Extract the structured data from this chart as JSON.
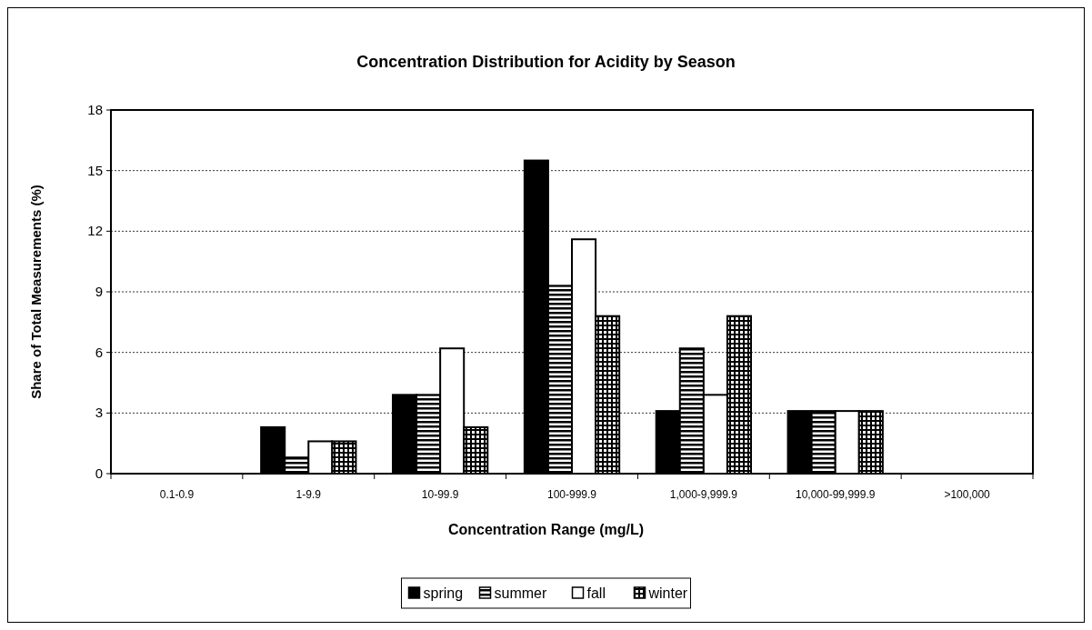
{
  "chart_data": {
    "type": "bar",
    "title": "Concentration Distribution for Acidity by Season",
    "xlabel": "Concentration Range (mg/L)",
    "ylabel": "Share of Total Measurements (%)",
    "categories": [
      "0.1-0.9",
      "1-9.9",
      "10-99.9",
      "100-999.9",
      "1,000-9,999.9",
      "10,000-99,999.9",
      ">100,000"
    ],
    "series": [
      {
        "name": "spring",
        "color": "#000000",
        "values": [
          0,
          2.3,
          3.9,
          15.5,
          3.1,
          3.1,
          0
        ]
      },
      {
        "name": "summer",
        "color": "#000000",
        "values": [
          0,
          0.8,
          3.9,
          9.3,
          6.2,
          3.1,
          0
        ]
      },
      {
        "name": "fall",
        "color": "#ffffff",
        "values": [
          0,
          1.6,
          6.2,
          11.6,
          3.9,
          3.1,
          0
        ]
      },
      {
        "name": "winter",
        "color": "#000000",
        "values": [
          0,
          1.6,
          2.3,
          7.8,
          7.8,
          3.1,
          0
        ]
      }
    ],
    "ylim": [
      0,
      18
    ],
    "yticks": [
      0,
      3,
      6,
      9,
      12,
      15,
      18
    ],
    "grid": "y",
    "legend": "bottom"
  }
}
